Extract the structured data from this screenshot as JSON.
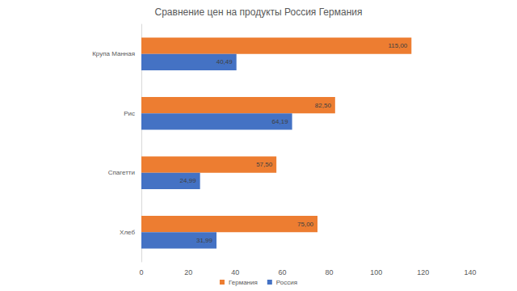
{
  "chart_data": {
    "type": "bar",
    "title": "Сравнение цен на продукты Россия Германия",
    "orientation": "horizontal",
    "categories": [
      "Крупа Манная",
      "Рис",
      "Спагетти",
      "Хлеб"
    ],
    "series": [
      {
        "name": "Германия",
        "color": "#ed7d31",
        "values": [
          115.0,
          82.5,
          57.5,
          75.0
        ],
        "value_labels": [
          "115,00",
          "82,50",
          "57,50",
          "75,00"
        ]
      },
      {
        "name": "Россия",
        "color": "#4472c4",
        "values": [
          40.49,
          64.19,
          24.99,
          31.99
        ],
        "value_labels": [
          "40,49",
          "64,19",
          "24,99",
          "31,99"
        ]
      }
    ],
    "xlim": [
      0,
      140
    ],
    "xticks": [
      0,
      20,
      40,
      60,
      80,
      100,
      120,
      140
    ],
    "grid": false,
    "legend": "bottom",
    "data_labels": true
  }
}
